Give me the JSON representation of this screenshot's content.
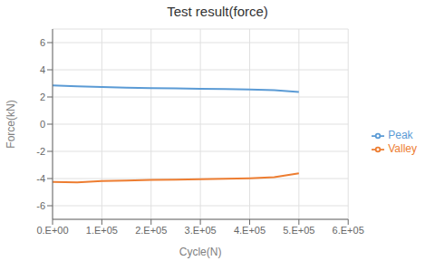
{
  "chart_data": {
    "type": "line",
    "title": "Test result(force)",
    "xlabel": "Cycle(N)",
    "ylabel": "Force(kN)",
    "x": [
      0,
      50000,
      100000,
      150000,
      200000,
      250000,
      300000,
      350000,
      400000,
      450000,
      500000
    ],
    "series": [
      {
        "name": "Peak",
        "color": "#5B9BD5",
        "values": [
          2.85,
          2.78,
          2.73,
          2.68,
          2.65,
          2.63,
          2.6,
          2.58,
          2.55,
          2.5,
          2.37
        ]
      },
      {
        "name": "Valley",
        "color": "#ED7D31",
        "values": [
          -4.25,
          -4.28,
          -4.18,
          -4.15,
          -4.1,
          -4.08,
          -4.05,
          -4.02,
          -3.98,
          -3.9,
          -3.62
        ]
      }
    ],
    "xlim": [
      0,
      600000
    ],
    "xticks": [
      {
        "value": 0,
        "label": "0.E+00"
      },
      {
        "value": 100000,
        "label": "1.E+05"
      },
      {
        "value": 200000,
        "label": "2.E+05"
      },
      {
        "value": 300000,
        "label": "3.E+05"
      },
      {
        "value": 400000,
        "label": "4.E+05"
      },
      {
        "value": 500000,
        "label": "5.E+05"
      },
      {
        "value": 600000,
        "label": "6.E+05"
      }
    ],
    "ylim": [
      -7,
      7
    ],
    "yticks": [
      -6,
      -4,
      -2,
      0,
      2,
      4,
      6
    ],
    "grid": true,
    "legend": "right"
  }
}
